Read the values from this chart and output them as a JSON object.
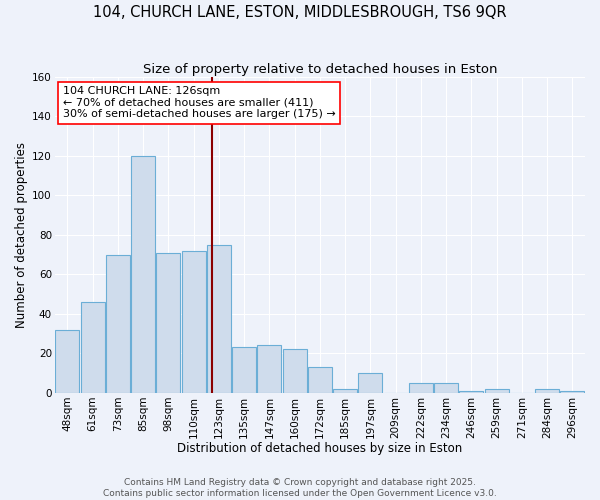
{
  "title": "104, CHURCH LANE, ESTON, MIDDLESBROUGH, TS6 9QR",
  "subtitle": "Size of property relative to detached houses in Eston",
  "xlabel": "Distribution of detached houses by size in Eston",
  "ylabel": "Number of detached properties",
  "bin_labels": [
    "48sqm",
    "61sqm",
    "73sqm",
    "85sqm",
    "98sqm",
    "110sqm",
    "123sqm",
    "135sqm",
    "147sqm",
    "160sqm",
    "172sqm",
    "185sqm",
    "197sqm",
    "209sqm",
    "222sqm",
    "234sqm",
    "246sqm",
    "259sqm",
    "271sqm",
    "284sqm",
    "296sqm"
  ],
  "bar_heights": [
    32,
    46,
    70,
    120,
    71,
    72,
    75,
    23,
    24,
    22,
    13,
    2,
    10,
    0,
    5,
    5,
    1,
    2,
    0,
    2,
    1
  ],
  "bar_color": "#cfdcec",
  "bar_edge_color": "#6baed6",
  "vline_x_bin": 6,
  "annotation_title": "104 CHURCH LANE: 126sqm",
  "annotation_line1": "← 70% of detached houses are smaller (411)",
  "annotation_line2": "30% of semi-detached houses are larger (175) →",
  "footer1": "Contains HM Land Registry data © Crown copyright and database right 2025.",
  "footer2": "Contains public sector information licensed under the Open Government Licence v3.0.",
  "ylim": [
    0,
    160
  ],
  "yticks": [
    0,
    20,
    40,
    60,
    80,
    100,
    120,
    140,
    160
  ],
  "background_color": "#eef2fa",
  "grid_color": "#ffffff",
  "title_fontsize": 10.5,
  "subtitle_fontsize": 9.5,
  "axis_label_fontsize": 8.5,
  "tick_fontsize": 7.5,
  "footer_fontsize": 6.5,
  "annotation_fontsize": 8.0
}
